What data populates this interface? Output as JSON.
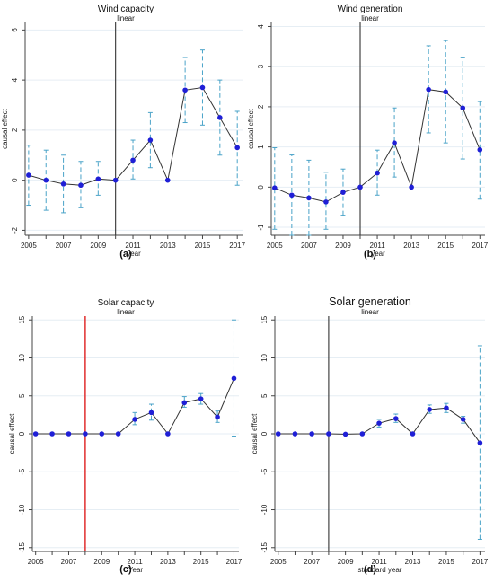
{
  "figure_layout": "2x2 grid of event-study panels",
  "colors": {
    "point": "#1f1fd6",
    "line": "#333333",
    "ci": "#4aa3c8",
    "vline_default": "#333333",
    "vline_red": "#e23b3b",
    "grid": "#e6eef4",
    "axis": "#444444"
  },
  "chart_data": [
    {
      "panel_id": "a",
      "type": "line",
      "title": "Wind capacity",
      "subtitle": "linear",
      "xlabel": "year",
      "ylabel": "causal effect",
      "caption": "(a)",
      "x": [
        2005,
        2006,
        2007,
        2008,
        2009,
        2010,
        2011,
        2012,
        2013,
        2014,
        2015,
        2016,
        2017
      ],
      "series": [
        {
          "values": [
            0.2,
            0.0,
            -0.15,
            -0.2,
            0.05,
            0.0,
            0.8,
            1.6,
            0.0,
            3.6,
            3.7,
            2.5,
            1.3
          ],
          "ci_low": [
            -1.0,
            -1.2,
            -1.3,
            -1.1,
            -0.6,
            null,
            0.05,
            0.5,
            null,
            2.3,
            2.2,
            1.0,
            -0.2
          ],
          "ci_high": [
            1.4,
            1.2,
            1.0,
            0.75,
            0.75,
            null,
            1.6,
            2.7,
            null,
            4.9,
            5.2,
            4.0,
            2.75
          ]
        }
      ],
      "xlim": [
        2004.8,
        2017.3
      ],
      "ylim": [
        -2.2,
        6.3
      ],
      "yticks": [
        -2,
        0,
        2,
        4,
        6
      ],
      "xticks_labeled": [
        2005,
        2007,
        2009,
        2011,
        2013,
        2015,
        2017
      ],
      "vline_x": 2010,
      "vline_color": "dark",
      "grid": true
    },
    {
      "panel_id": "b",
      "type": "line",
      "title": "Wind generation",
      "subtitle": "linear",
      "xlabel": "year",
      "ylabel": "causal effect",
      "caption": "(b)",
      "x": [
        2005,
        2006,
        2007,
        2008,
        2009,
        2010,
        2011,
        2012,
        2013,
        2014,
        2015,
        2016,
        2017
      ],
      "series": [
        {
          "values": [
            -0.02,
            -0.2,
            -0.27,
            -0.37,
            -0.13,
            0.0,
            0.35,
            1.1,
            0.0,
            2.43,
            2.37,
            1.97,
            0.93
          ],
          "ci_low": [
            -1.05,
            -1.2,
            -1.2,
            -1.05,
            -0.7,
            null,
            -0.2,
            0.25,
            null,
            1.35,
            1.1,
            0.7,
            -0.3
          ],
          "ci_high": [
            0.98,
            0.8,
            0.67,
            0.37,
            0.45,
            null,
            0.92,
            1.97,
            null,
            3.52,
            3.65,
            3.22,
            2.13
          ]
        }
      ],
      "xlim": [
        2004.8,
        2017.3
      ],
      "ylim": [
        -1.2,
        4.1
      ],
      "yticks": [
        -1,
        0,
        1,
        2,
        3,
        4
      ],
      "xticks_labeled": [
        2005,
        2007,
        2009,
        2011,
        2013,
        2015,
        2017
      ],
      "vline_x": 2010,
      "vline_color": "dark",
      "grid": true
    },
    {
      "panel_id": "c",
      "type": "line",
      "title": "Solar capacity",
      "subtitle": "linear",
      "xlabel": "Year",
      "ylabel": "causal effect",
      "caption": "(c)",
      "x": [
        2005,
        2006,
        2007,
        2008,
        2009,
        2010,
        2011,
        2012,
        2013,
        2014,
        2015,
        2016,
        2017
      ],
      "series": [
        {
          "values": [
            0.0,
            0.0,
            0.0,
            0.0,
            0.0,
            0.0,
            1.9,
            2.8,
            0.0,
            4.1,
            4.6,
            2.2,
            7.3
          ],
          "ci_low": [
            null,
            null,
            null,
            null,
            null,
            null,
            1.2,
            1.8,
            null,
            3.5,
            3.9,
            1.5,
            -0.3
          ],
          "ci_high": [
            null,
            null,
            null,
            null,
            null,
            null,
            2.8,
            3.9,
            null,
            4.9,
            5.3,
            3.0,
            15.0
          ]
        }
      ],
      "xlim": [
        2004.8,
        2017.3
      ],
      "ylim": [
        -15.5,
        15.5
      ],
      "yticks": [
        -15,
        -10,
        -5,
        0,
        5,
        10,
        15
      ],
      "xticks_labeled": [
        2005,
        2007,
        2009,
        2011,
        2013,
        2015,
        2017
      ],
      "vline_x": 2008,
      "vline_color": "red",
      "grid": true
    },
    {
      "panel_id": "d",
      "type": "line",
      "title": "Solar generation",
      "subtitle": "linear",
      "xlabel": "standard year",
      "ylabel": "causal effect",
      "caption": "(d)",
      "x": [
        2005,
        2006,
        2007,
        2008,
        2009,
        2010,
        2011,
        2012,
        2013,
        2014,
        2015,
        2016,
        2017
      ],
      "series": [
        {
          "values": [
            0.0,
            0.0,
            0.0,
            0.0,
            -0.05,
            0.0,
            1.4,
            2.0,
            0.0,
            3.2,
            3.4,
            1.9,
            -1.2
          ],
          "ci_low": [
            null,
            null,
            null,
            null,
            null,
            null,
            0.9,
            1.5,
            null,
            2.7,
            2.8,
            1.4,
            -13.9
          ],
          "ci_high": [
            null,
            null,
            null,
            null,
            null,
            null,
            1.9,
            2.6,
            null,
            3.8,
            4.0,
            2.3,
            11.6
          ]
        }
      ],
      "xlim": [
        2004.8,
        2017.3
      ],
      "ylim": [
        -15.5,
        15.5
      ],
      "yticks": [
        -15,
        -10,
        -5,
        0,
        5,
        10,
        15
      ],
      "xticks_labeled": [
        2005,
        2007,
        2009,
        2011,
        2013,
        2015,
        2017
      ],
      "vline_x": 2008,
      "vline_color": "dark",
      "grid": true
    }
  ]
}
